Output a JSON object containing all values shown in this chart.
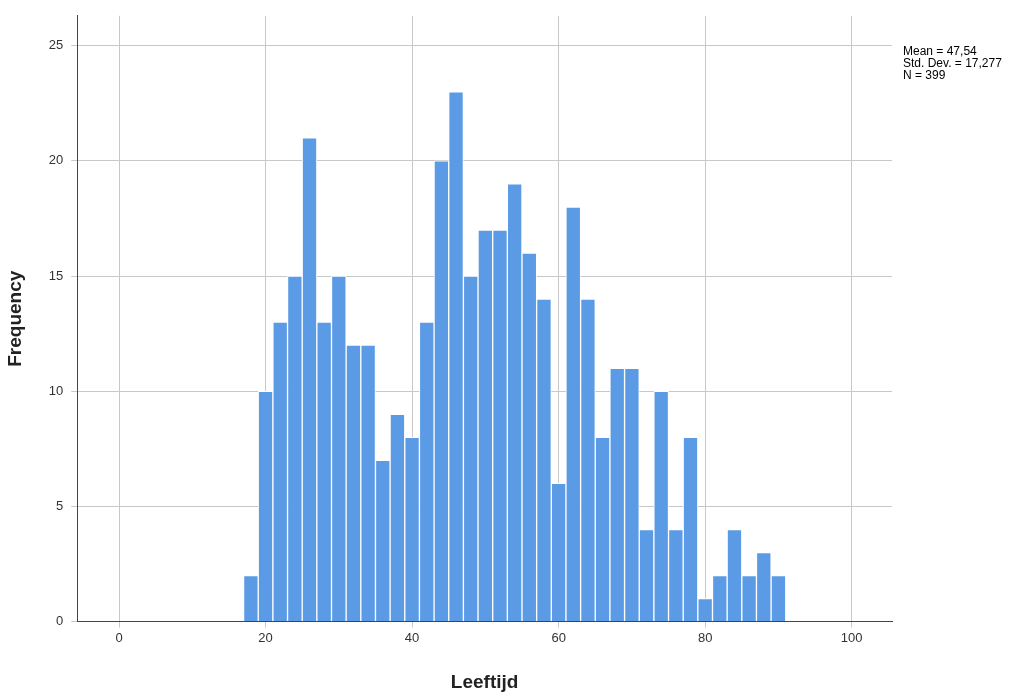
{
  "chart_data": {
    "type": "histogram",
    "xlabel": "Leeftijd",
    "ylabel": "Frequency",
    "bins": [
      17,
      19,
      21,
      23,
      25,
      27,
      29,
      31,
      33,
      35,
      37,
      39,
      41,
      43,
      45,
      47,
      49,
      51,
      53,
      55,
      57,
      59,
      61,
      63,
      65,
      67,
      69,
      71,
      73,
      75,
      77,
      79,
      81,
      83,
      85,
      87,
      89,
      91
    ],
    "values": [
      2,
      10,
      13,
      15,
      21,
      13,
      15,
      12,
      12,
      7,
      9,
      8,
      13,
      20,
      23,
      15,
      17,
      17,
      19,
      16,
      14,
      6,
      18,
      14,
      8,
      11,
      11,
      4,
      10,
      4,
      8,
      1,
      2,
      4,
      2,
      3,
      2
    ],
    "color": "#5b9be6",
    "xlim": [
      -5.7,
      105.5
    ],
    "xticks": [
      0,
      20,
      40,
      60,
      80,
      100
    ],
    "ylim": [
      0,
      26.3
    ],
    "yticks": [
      0,
      5,
      10,
      15,
      20,
      25
    ],
    "grid": true,
    "legend": false,
    "annotations": [
      "Mean = 47,54",
      "Std. Dev. = 17,277",
      "N = 399"
    ]
  }
}
